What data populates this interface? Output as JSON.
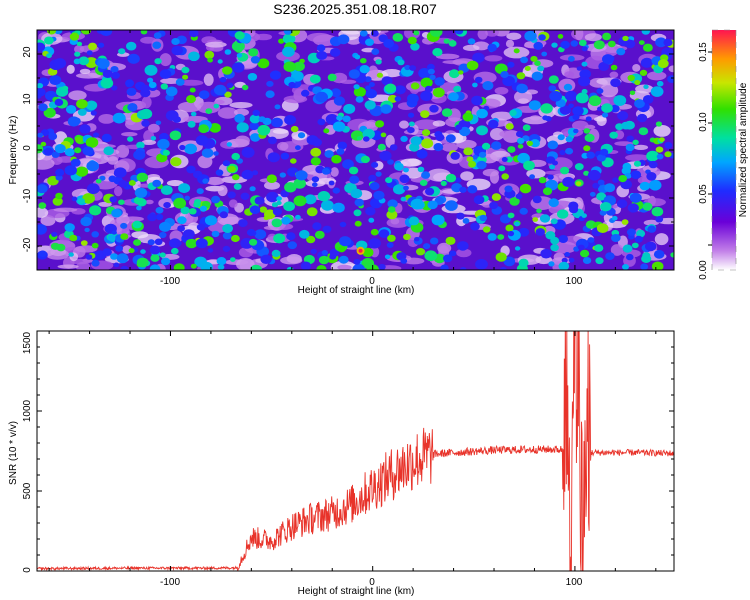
{
  "title": "S236.2025.351.08.18.R07",
  "colors": {
    "axis": "#000000",
    "snr_line": "#e8332a"
  },
  "chart_data": [
    {
      "type": "heatmap",
      "xlabel": "Height of straight line (km)",
      "ylabel": "Frequency (Hz)",
      "xlim": [
        -166,
        149
      ],
      "ylim": [
        -25,
        25
      ],
      "x_ticks": [
        "-100",
        "0",
        "100"
      ],
      "y_ticks": [
        "-20",
        "-10",
        "0",
        "10",
        "20"
      ],
      "colorbar": {
        "label": "Normalized spectral amplitude",
        "range": [
          0.0,
          0.16
        ],
        "ticks": [
          "0.00",
          "0.05",
          "0.10",
          "0.15"
        ]
      },
      "peak": {
        "x": -6,
        "y": -21,
        "value": 0.16
      },
      "background_level": 0.02,
      "speckle_max": 0.09
    },
    {
      "type": "line",
      "xlabel": "Height of straight line (km)",
      "ylabel": "SNR (10 * v/v)",
      "xlim": [
        -166,
        149
      ],
      "ylim": [
        0,
        1500
      ],
      "x_ticks": [
        "-100",
        "0",
        "100"
      ],
      "y_ticks": [
        "0",
        "500",
        "1000",
        "1500"
      ],
      "series": [
        {
          "name": "SNR",
          "x": [
            -166,
            -120,
            -80,
            -67,
            -60,
            -50,
            -40,
            -30,
            -20,
            -10,
            0,
            10,
            20,
            30,
            40,
            60,
            80,
            94,
            96,
            98,
            100,
            102,
            104,
            106,
            108,
            110,
            130,
            149
          ],
          "values": [
            15,
            18,
            18,
            20,
            210,
            190,
            280,
            330,
            360,
            420,
            520,
            610,
            690,
            730,
            740,
            755,
            760,
            760,
            1200,
            150,
            1480,
            1000,
            180,
            1100,
            740,
            740,
            740,
            735
          ]
        }
      ]
    }
  ]
}
